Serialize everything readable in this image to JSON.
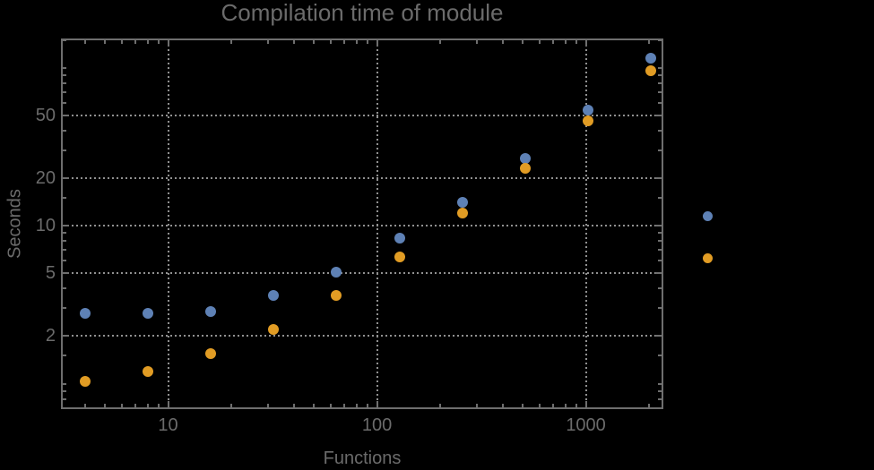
{
  "page": {
    "background_color": "#000000"
  },
  "chart_data": {
    "type": "scatter",
    "title": "Compilation time of module",
    "xlabel": "Functions",
    "ylabel": "Seconds",
    "xscale": "log",
    "yscale": "log",
    "xlim": [
      3.07,
      2349
    ],
    "ylim": [
      0.69,
      153
    ],
    "grid": true,
    "gridline_style": "dotted",
    "gridline_color": "#909090",
    "frame_color": "#6e6e6e",
    "text_color": "#6b6b6b",
    "x_axis": {
      "major_ticks": [
        10,
        100,
        1000
      ],
      "major_labels": [
        "10",
        "100",
        "1000"
      ],
      "minor_ticks": [
        4,
        5,
        6,
        7,
        8,
        9,
        20,
        30,
        40,
        50,
        60,
        70,
        80,
        90,
        200,
        300,
        400,
        500,
        600,
        700,
        800,
        900,
        2000
      ]
    },
    "y_axis": {
      "major_ticks": [
        2,
        5,
        10,
        20,
        50
      ],
      "major_labels": [
        "2",
        "5",
        "10",
        "20",
        "50"
      ],
      "minor_ticks": [
        0.7,
        0.8,
        0.9,
        1,
        1.5,
        3,
        4,
        6,
        7,
        8,
        9,
        15,
        30,
        40,
        60,
        70,
        80,
        90,
        100,
        150
      ]
    },
    "x": [
      4,
      8,
      16,
      32,
      64,
      128,
      256,
      512,
      1024,
      2048
    ],
    "series": [
      {
        "name": "series-blue",
        "color": "#5e81b5",
        "values": [
          2.8,
          2.8,
          2.85,
          3.6,
          5.1,
          8.3,
          14,
          26.5,
          54,
          115
        ]
      },
      {
        "name": "series-orange",
        "color": "#e19c24",
        "values": [
          1.03,
          1.2,
          1.55,
          2.2,
          3.6,
          6.3,
          12,
          23,
          46,
          96
        ]
      }
    ],
    "legend": {
      "position": "right-outside",
      "labels_visible": false,
      "markers": [
        {
          "series": "series-blue",
          "color": "#5e81b5"
        },
        {
          "series": "series-orange",
          "color": "#e19c24"
        }
      ]
    }
  }
}
